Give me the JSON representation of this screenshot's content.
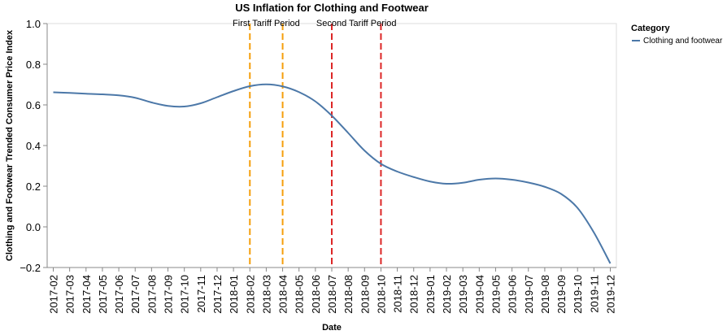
{
  "chart_data": {
    "type": "line",
    "title": "US Inflation for Clothing and Footwear",
    "xlabel": "Date",
    "ylabel": "Clothing and Footwear Trended Consumer Price Index",
    "ylim": [
      -0.2,
      1.0
    ],
    "yticks": [
      "−0.2",
      "0.0",
      "0.2",
      "0.4",
      "0.6",
      "0.8",
      "1.0"
    ],
    "x": [
      "2017-02",
      "2017-03",
      "2017-04",
      "2017-05",
      "2017-06",
      "2017-07",
      "2017-08",
      "2017-09",
      "2017-10",
      "2017-11",
      "2017-12",
      "2018-01",
      "2018-02",
      "2018-03",
      "2018-04",
      "2018-05",
      "2018-06",
      "2018-07",
      "2018-08",
      "2018-09",
      "2018-10",
      "2018-11",
      "2018-12",
      "2019-01",
      "2019-02",
      "2019-03",
      "2019-04",
      "2019-05",
      "2019-06",
      "2019-07",
      "2019-08",
      "2019-09",
      "2019-10",
      "2019-11",
      "2019-12"
    ],
    "series": [
      {
        "name": "Clothing and footwear",
        "color": "#4c78a8",
        "values": [
          0.662,
          0.659,
          0.655,
          0.652,
          0.647,
          0.635,
          0.612,
          0.595,
          0.592,
          0.608,
          0.638,
          0.668,
          0.692,
          0.701,
          0.691,
          0.663,
          0.617,
          0.547,
          0.462,
          0.375,
          0.31,
          0.272,
          0.245,
          0.223,
          0.212,
          0.217,
          0.232,
          0.238,
          0.232,
          0.218,
          0.197,
          0.162,
          0.093,
          -0.028,
          -0.18
        ]
      }
    ],
    "periods": [
      {
        "label": "First Tariff Period",
        "color": "#f59e0b",
        "start": "2018-02",
        "end": "2018-04"
      },
      {
        "label": "Second Tariff Period",
        "color": "#dc2626",
        "start": "2018-07",
        "end": "2018-10"
      }
    ],
    "legend": {
      "title": "Category",
      "position": "top-right"
    },
    "grid": false
  }
}
